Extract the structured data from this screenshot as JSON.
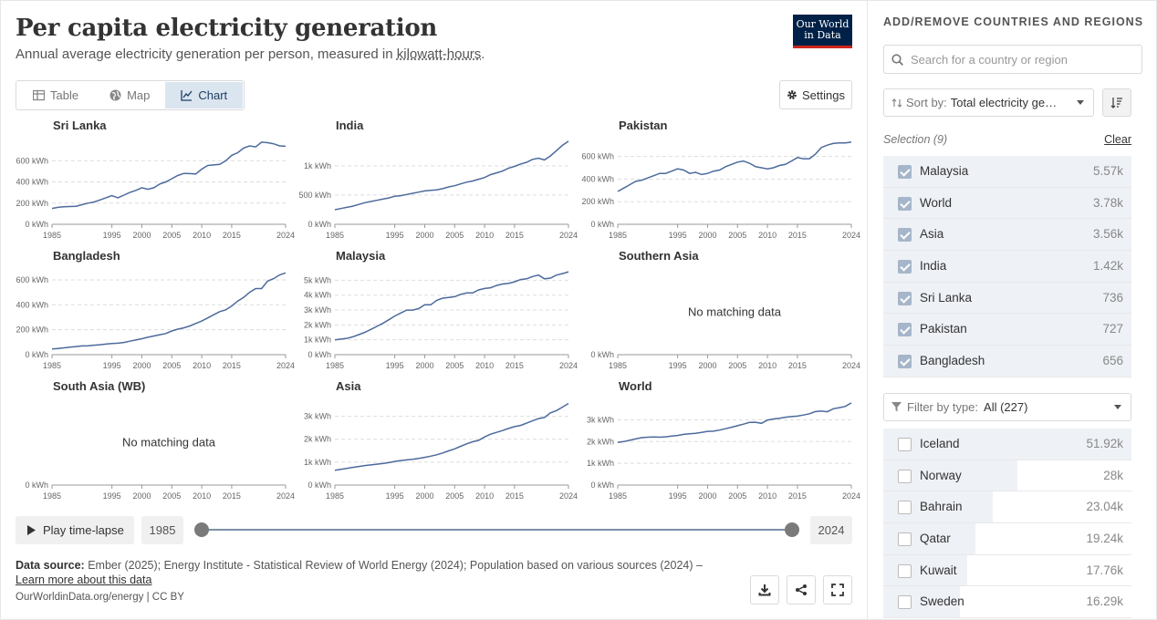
{
  "header": {
    "title": "Per capita electricity generation",
    "subtitle_prefix": "Annual average electricity generation per person, measured in ",
    "subtitle_link": "kilowatt-hours",
    "subtitle_suffix": ".",
    "logo_line1": "Our World",
    "logo_line2": "in Data"
  },
  "tabs": [
    {
      "label": "Table",
      "icon": "table-icon",
      "active": false
    },
    {
      "label": "Map",
      "icon": "globe-icon",
      "active": false
    },
    {
      "label": "Chart",
      "icon": "line-chart-icon",
      "active": true
    }
  ],
  "settings_label": "Settings",
  "no_data_label": "No matching data",
  "chart_data": [
    {
      "type": "line",
      "title": "Sri Lanka",
      "x": [
        1985,
        1986,
        1987,
        1988,
        1989,
        1990,
        1991,
        1992,
        1993,
        1994,
        1995,
        1996,
        1997,
        1998,
        1999,
        2000,
        2001,
        2002,
        2003,
        2004,
        2005,
        2006,
        2007,
        2008,
        2009,
        2010,
        2011,
        2012,
        2013,
        2014,
        2015,
        2016,
        2017,
        2018,
        2019,
        2020,
        2021,
        2022,
        2023,
        2024
      ],
      "y": [
        150,
        160,
        165,
        168,
        170,
        185,
        200,
        210,
        230,
        250,
        270,
        250,
        275,
        300,
        320,
        345,
        330,
        345,
        380,
        400,
        430,
        460,
        480,
        478,
        475,
        520,
        555,
        560,
        565,
        600,
        650,
        675,
        720,
        740,
        730,
        775,
        770,
        760,
        740,
        736
      ],
      "yticks": [
        0,
        200,
        400,
        600
      ],
      "ytick_labels": [
        "0 kWh",
        "200 kWh",
        "400 kWh",
        "600 kWh"
      ],
      "ylim": [
        0,
        800
      ],
      "xticks": [
        1985,
        1995,
        2000,
        2005,
        2010,
        2015,
        2024
      ]
    },
    {
      "type": "line",
      "title": "India",
      "x": [
        1985,
        1986,
        1987,
        1988,
        1989,
        1990,
        1991,
        1992,
        1993,
        1994,
        1995,
        1996,
        1997,
        1998,
        1999,
        2000,
        2001,
        2002,
        2003,
        2004,
        2005,
        2006,
        2007,
        2008,
        2009,
        2010,
        2011,
        2012,
        2013,
        2014,
        2015,
        2016,
        2017,
        2018,
        2019,
        2020,
        2021,
        2022,
        2023,
        2024
      ],
      "y": [
        250,
        270,
        290,
        310,
        340,
        370,
        390,
        410,
        430,
        450,
        480,
        490,
        510,
        530,
        550,
        570,
        580,
        590,
        610,
        640,
        660,
        690,
        720,
        740,
        770,
        800,
        850,
        880,
        910,
        960,
        990,
        1030,
        1060,
        1110,
        1130,
        1100,
        1170,
        1260,
        1350,
        1420
      ],
      "yticks": [
        0,
        500,
        1000
      ],
      "ytick_labels": [
        "0 kWh",
        "500 kWh",
        "1k kWh"
      ],
      "ylim": [
        0,
        1450
      ],
      "xticks": [
        1985,
        1995,
        2000,
        2005,
        2010,
        2015,
        2024
      ]
    },
    {
      "type": "line",
      "title": "Pakistan",
      "x": [
        1985,
        1986,
        1987,
        1988,
        1989,
        1990,
        1991,
        1992,
        1993,
        1994,
        1995,
        1996,
        1997,
        1998,
        1999,
        2000,
        2001,
        2002,
        2003,
        2004,
        2005,
        2006,
        2007,
        2008,
        2009,
        2010,
        2011,
        2012,
        2013,
        2014,
        2015,
        2016,
        2017,
        2018,
        2019,
        2020,
        2021,
        2022,
        2023,
        2024
      ],
      "y": [
        290,
        320,
        350,
        380,
        390,
        410,
        430,
        450,
        450,
        470,
        490,
        480,
        450,
        460,
        440,
        450,
        470,
        480,
        510,
        530,
        550,
        560,
        540,
        510,
        500,
        490,
        500,
        520,
        530,
        560,
        590,
        580,
        580,
        620,
        680,
        700,
        715,
        720,
        720,
        727
      ],
      "yticks": [
        0,
        200,
        400,
        600
      ],
      "ytick_labels": [
        "0 kWh",
        "200 kWh",
        "400 kWh",
        "600 kWh"
      ],
      "ylim": [
        0,
        750
      ],
      "xticks": [
        1985,
        1995,
        2000,
        2005,
        2010,
        2015,
        2024
      ]
    },
    {
      "type": "line",
      "title": "Bangladesh",
      "x": [
        1985,
        1986,
        1987,
        1988,
        1989,
        1990,
        1991,
        1992,
        1993,
        1994,
        1995,
        1996,
        1997,
        1998,
        1999,
        2000,
        2001,
        2002,
        2003,
        2004,
        2005,
        2006,
        2007,
        2008,
        2009,
        2010,
        2011,
        2012,
        2013,
        2014,
        2015,
        2016,
        2017,
        2018,
        2019,
        2020,
        2021,
        2022,
        2023,
        2024
      ],
      "y": [
        45,
        50,
        55,
        60,
        65,
        70,
        72,
        76,
        80,
        85,
        90,
        92,
        98,
        108,
        118,
        128,
        140,
        150,
        160,
        170,
        190,
        205,
        215,
        230,
        250,
        270,
        295,
        320,
        345,
        360,
        390,
        430,
        460,
        500,
        530,
        530,
        590,
        610,
        640,
        656
      ],
      "yticks": [
        0,
        200,
        400,
        600
      ],
      "ytick_labels": [
        "0 kWh",
        "200 kWh",
        "400 kWh",
        "600 kWh"
      ],
      "ylim": [
        0,
        680
      ],
      "xticks": [
        1985,
        1995,
        2000,
        2005,
        2010,
        2015,
        2024
      ]
    },
    {
      "type": "line",
      "title": "Malaysia",
      "x": [
        1985,
        1986,
        1987,
        1988,
        1989,
        1990,
        1991,
        1992,
        1993,
        1994,
        1995,
        1996,
        1997,
        1998,
        1999,
        2000,
        2001,
        2002,
        2003,
        2004,
        2005,
        2006,
        2007,
        2008,
        2009,
        2010,
        2011,
        2012,
        2013,
        2014,
        2015,
        2016,
        2017,
        2018,
        2019,
        2020,
        2021,
        2022,
        2023,
        2024
      ],
      "y": [
        1000,
        1050,
        1100,
        1200,
        1350,
        1500,
        1700,
        1900,
        2100,
        2350,
        2600,
        2800,
        3000,
        3000,
        3100,
        3350,
        3350,
        3650,
        3800,
        3850,
        3900,
        4050,
        4150,
        4150,
        4350,
        4450,
        4500,
        4650,
        4750,
        4800,
        4900,
        5050,
        5100,
        5250,
        5350,
        5100,
        5150,
        5350,
        5450,
        5570
      ],
      "yticks": [
        0,
        1000,
        2000,
        3000,
        4000,
        5000
      ],
      "ytick_labels": [
        "0 kWh",
        "1k kWh",
        "2k kWh",
        "3k kWh",
        "4k kWh",
        "5k kWh"
      ],
      "ylim": [
        0,
        5700
      ],
      "xticks": [
        1985,
        1995,
        2000,
        2005,
        2010,
        2015,
        2024
      ]
    },
    {
      "type": "line",
      "title": "Southern Asia",
      "x": [],
      "y": [],
      "no_data": true,
      "yticks": [
        0
      ],
      "ytick_labels": [
        "0 kWh"
      ],
      "ylim": [
        0,
        1
      ],
      "xticks": [
        1985,
        1995,
        2000,
        2005,
        2010,
        2015,
        2024
      ]
    },
    {
      "type": "line",
      "title": "South Asia (WB)",
      "x": [],
      "y": [],
      "no_data": true,
      "yticks": [
        0
      ],
      "ytick_labels": [
        "0 kWh"
      ],
      "ylim": [
        0,
        1
      ],
      "xticks": [
        1985,
        1995,
        2000,
        2005,
        2010,
        2015,
        2024
      ]
    },
    {
      "type": "line",
      "title": "Asia",
      "x": [
        1985,
        1986,
        1987,
        1988,
        1989,
        1990,
        1991,
        1992,
        1993,
        1994,
        1995,
        1996,
        1997,
        1998,
        1999,
        2000,
        2001,
        2002,
        2003,
        2004,
        2005,
        2006,
        2007,
        2008,
        2009,
        2010,
        2011,
        2012,
        2013,
        2014,
        2015,
        2016,
        2017,
        2018,
        2019,
        2020,
        2021,
        2022,
        2023,
        2024
      ],
      "y": [
        650,
        690,
        730,
        770,
        810,
        850,
        880,
        910,
        940,
        980,
        1030,
        1070,
        1100,
        1120,
        1160,
        1210,
        1260,
        1320,
        1400,
        1490,
        1580,
        1690,
        1800,
        1890,
        1950,
        2100,
        2220,
        2300,
        2380,
        2470,
        2550,
        2600,
        2700,
        2800,
        2900,
        2950,
        3150,
        3250,
        3400,
        3560
      ],
      "yticks": [
        0,
        1000,
        2000,
        3000
      ],
      "ytick_labels": [
        "0 kWh",
        "1k kWh",
        "2k kWh",
        "3k kWh"
      ],
      "ylim": [
        0,
        3700
      ],
      "xticks": [
        1985,
        1995,
        2000,
        2005,
        2010,
        2015,
        2024
      ]
    },
    {
      "type": "line",
      "title": "World",
      "x": [
        1985,
        1986,
        1987,
        1988,
        1989,
        1990,
        1991,
        1992,
        1993,
        1994,
        1995,
        1996,
        1997,
        1998,
        1999,
        2000,
        2001,
        2002,
        2003,
        2004,
        2005,
        2006,
        2007,
        2008,
        2009,
        2010,
        2011,
        2012,
        2013,
        2014,
        2015,
        2016,
        2017,
        2018,
        2019,
        2020,
        2021,
        2022,
        2023,
        2024
      ],
      "y": [
        1960,
        2000,
        2060,
        2120,
        2180,
        2200,
        2210,
        2200,
        2220,
        2250,
        2280,
        2330,
        2360,
        2380,
        2420,
        2470,
        2480,
        2530,
        2590,
        2660,
        2730,
        2800,
        2880,
        2890,
        2840,
        2990,
        3040,
        3070,
        3120,
        3150,
        3170,
        3220,
        3280,
        3380,
        3400,
        3370,
        3510,
        3560,
        3620,
        3780
      ],
      "yticks": [
        0,
        1000,
        2000,
        3000
      ],
      "ytick_labels": [
        "0 kWh",
        "1k kWh",
        "2k kWh",
        "3k kWh"
      ],
      "ylim": [
        0,
        3900
      ],
      "xticks": [
        1985,
        1995,
        2000,
        2005,
        2010,
        2015,
        2024
      ]
    }
  ],
  "timeline": {
    "play_label": "Play time-lapse",
    "start_year": "1985",
    "end_year": "2024",
    "start_fraction": 0,
    "end_fraction": 1
  },
  "source": {
    "label": "Data source:",
    "text": "Ember (2025); Energy Institute - Statistical Review of World Energy (2024); Population based on various sources (2024) –",
    "learn_more": "Learn more about this data",
    "footer": "OurWorldinData.org/energy | CC BY"
  },
  "sidebar": {
    "title": "ADD/REMOVE COUNTRIES AND REGIONS",
    "search_placeholder": "Search for a country or region",
    "sort_label": "Sort by:",
    "sort_value": "Total electricity generation",
    "selection_label": "Selection (9)",
    "clear_label": "Clear",
    "selected": [
      {
        "name": "Malaysia",
        "value": "5.57k",
        "fraction": 1.0
      },
      {
        "name": "World",
        "value": "3.78k",
        "fraction": 1.0
      },
      {
        "name": "Asia",
        "value": "3.56k",
        "fraction": 1.0
      },
      {
        "name": "India",
        "value": "1.42k",
        "fraction": 1.0
      },
      {
        "name": "Sri Lanka",
        "value": "736",
        "fraction": 1.0
      },
      {
        "name": "Pakistan",
        "value": "727",
        "fraction": 1.0
      },
      {
        "name": "Bangladesh",
        "value": "656",
        "fraction": 1.0
      }
    ],
    "filter_label": "Filter by type:",
    "filter_value": "All (227)",
    "available": [
      {
        "name": "Iceland",
        "value": "51.92k",
        "fraction": 1.0
      },
      {
        "name": "Norway",
        "value": "28k",
        "fraction": 0.54
      },
      {
        "name": "Bahrain",
        "value": "23.04k",
        "fraction": 0.44
      },
      {
        "name": "Qatar",
        "value": "19.24k",
        "fraction": 0.37
      },
      {
        "name": "Kuwait",
        "value": "17.76k",
        "fraction": 0.34
      },
      {
        "name": "Sweden",
        "value": "16.29k",
        "fraction": 0.31
      }
    ]
  },
  "colors": {
    "line": "#4c6a9c",
    "accent_bg": "#dbe5f0",
    "logo_bg": "#002147",
    "logo_stripe": "#ce261e"
  }
}
